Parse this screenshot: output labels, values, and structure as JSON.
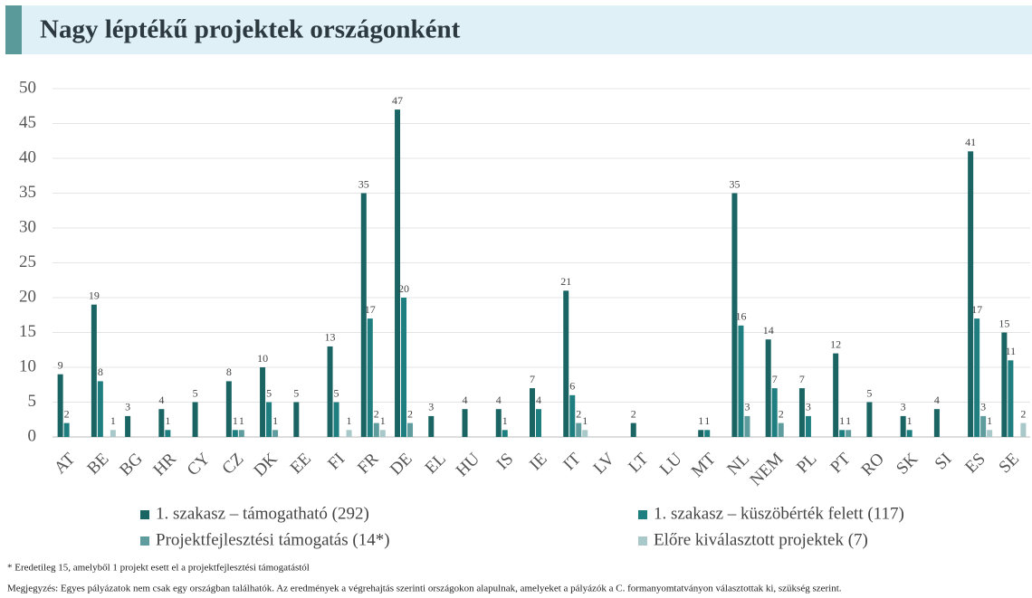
{
  "chart_data": {
    "type": "bar",
    "title": "Nagy léptékű projektek országonként",
    "categories": [
      "AT",
      "BE",
      "BG",
      "HR",
      "CY",
      "CZ",
      "DK",
      "EE",
      "FI",
      "FR",
      "DE",
      "EL",
      "HU",
      "IS",
      "IE",
      "IT",
      "LV",
      "LT",
      "LU",
      "MT",
      "NL",
      "NEM",
      "PL",
      "PT",
      "RO",
      "SK",
      "SI",
      "ES",
      "SE"
    ],
    "series": [
      {
        "name": "1. szakasz – támogatható (292)",
        "color": "#1a6464",
        "values": [
          9,
          19,
          3,
          4,
          5,
          8,
          10,
          5,
          13,
          35,
          47,
          3,
          4,
          4,
          7,
          21,
          null,
          2,
          null,
          1,
          35,
          14,
          7,
          12,
          5,
          3,
          4,
          41,
          15
        ]
      },
      {
        "name": "1. szakasz – küszöbérték felett (117)",
        "color": "#1f7f80",
        "values": [
          2,
          8,
          null,
          1,
          null,
          1,
          5,
          null,
          5,
          17,
          20,
          null,
          null,
          1,
          4,
          6,
          null,
          null,
          null,
          1,
          16,
          7,
          3,
          1,
          null,
          1,
          null,
          17,
          11
        ]
      },
      {
        "name": "Projektfejlesztési támogatás (14*)",
        "color": "#5f9c9d",
        "values": [
          null,
          null,
          null,
          null,
          null,
          1,
          1,
          null,
          null,
          2,
          2,
          null,
          null,
          null,
          null,
          2,
          null,
          null,
          null,
          null,
          3,
          2,
          null,
          1,
          null,
          null,
          null,
          3,
          null
        ]
      },
      {
        "name": "Előre kiválasztott projektek (7)",
        "color": "#a9c8c9",
        "values": [
          null,
          1,
          null,
          null,
          null,
          null,
          null,
          null,
          1,
          1,
          null,
          null,
          null,
          null,
          null,
          1,
          null,
          null,
          null,
          null,
          null,
          null,
          null,
          null,
          null,
          null,
          null,
          1,
          2
        ]
      }
    ],
    "ylim": [
      0,
      50
    ],
    "yticks": [
      0,
      5,
      10,
      15,
      20,
      25,
      30,
      35,
      40,
      45,
      50
    ],
    "grid": true,
    "footnote": "* Eredetileg 15, amelyből 1 projekt esett el a projektfejlesztési támogatástól",
    "note": "Megjegyzés: Egyes pályázatok nem csak egy országban találhatók. Az eredmények a végrehajtás szerinti országokon alapulnak, amelyeket a pályázók a C. formanyomtatványon választottak ki, szükség szerint."
  }
}
